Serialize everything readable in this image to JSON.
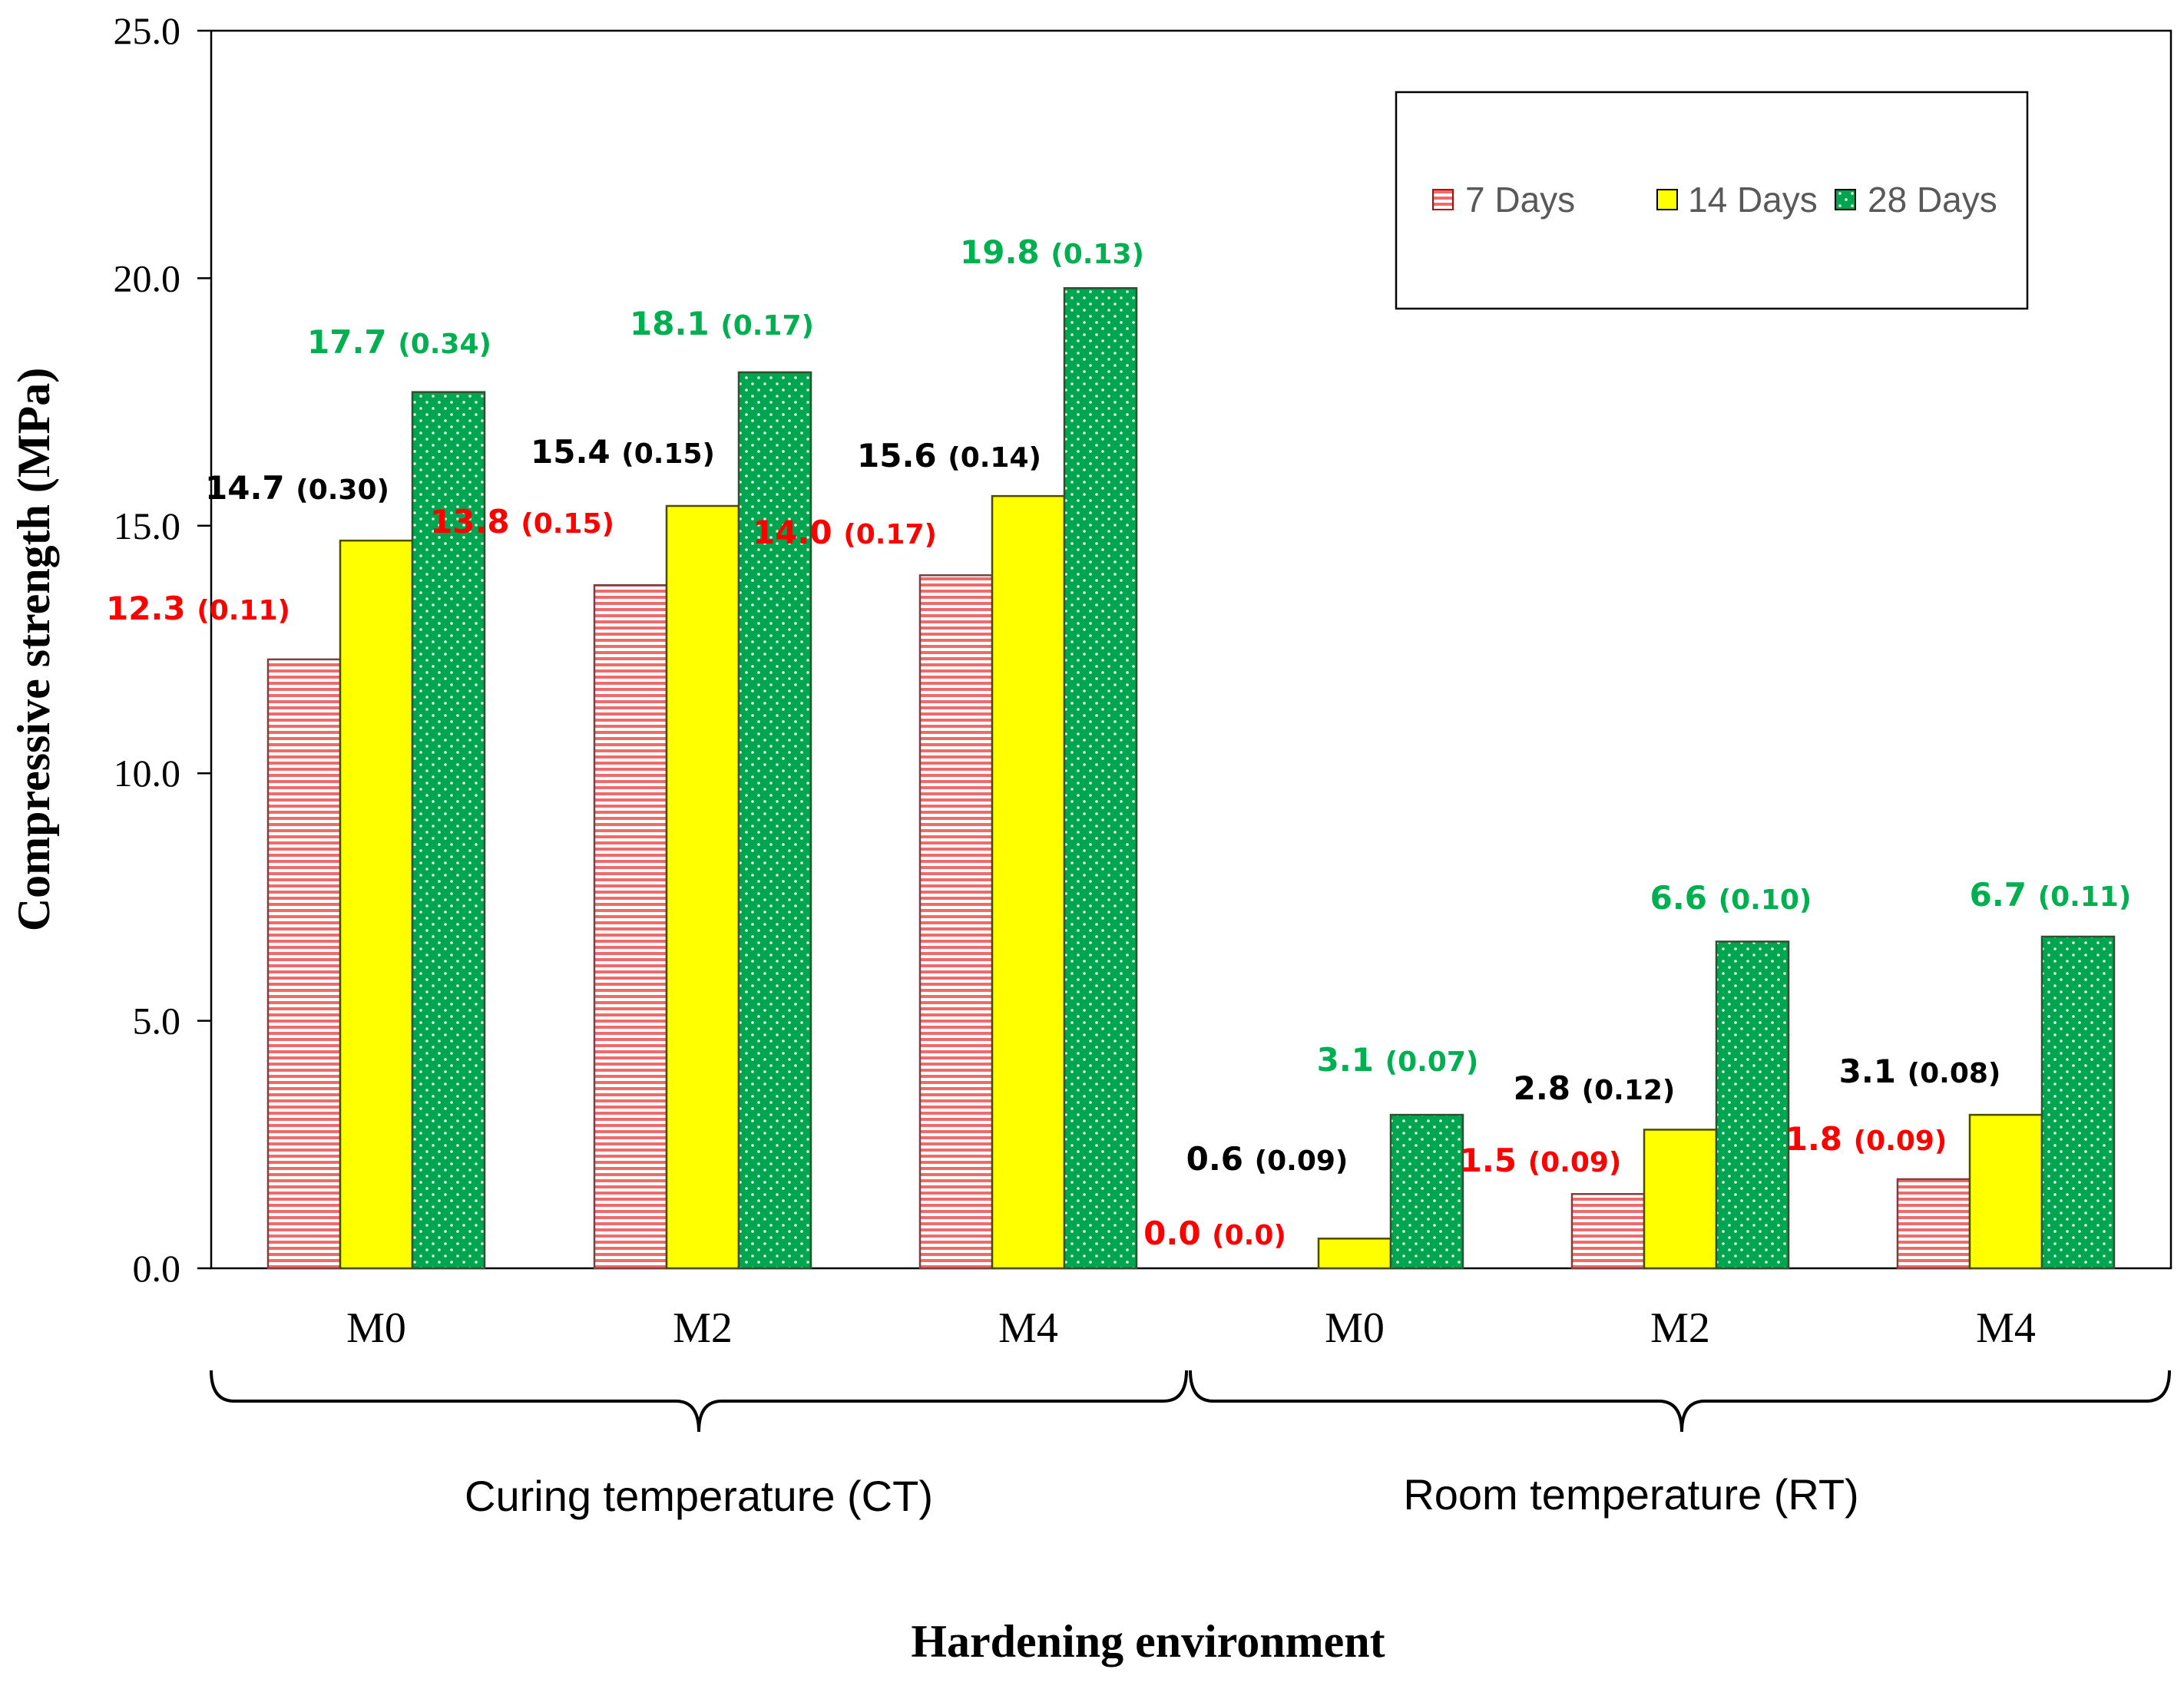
{
  "chart_data": {
    "type": "bar",
    "ylabel": "Compressive strength (MPa)",
    "xlabel": "Hardening environment",
    "ylim": [
      0,
      25
    ],
    "yticks": [
      "0.0",
      "5.0",
      "10.0",
      "15.0",
      "20.0",
      "25.0"
    ],
    "categories": [
      "M0",
      "M2",
      "M4",
      "M0",
      "M2",
      "M4"
    ],
    "groups": [
      {
        "name": "Curing temperature (CT)",
        "category_indices": [
          0,
          1,
          2
        ]
      },
      {
        "name": "Room temperature (RT)",
        "category_indices": [
          3,
          4,
          5
        ]
      }
    ],
    "series": [
      {
        "name": "7 Days",
        "color": "#ff0000",
        "fill": "#f4a3a3",
        "pattern": "horizontal-lines",
        "values": [
          12.3,
          13.8,
          14.0,
          0.0,
          1.5,
          1.8
        ],
        "labels": [
          [
            "12.3",
            "(0.11)"
          ],
          [
            "13.8",
            "(0.15)"
          ],
          [
            "14.0",
            "(0.17)"
          ],
          [
            "0.0",
            "(0.0)"
          ],
          [
            "1.5",
            "(0.09)"
          ],
          [
            "1.8",
            "(0.09)"
          ]
        ]
      },
      {
        "name": "14 Days",
        "color": "#000000",
        "fill": "#ffff00",
        "pattern": "solid",
        "values": [
          14.7,
          15.4,
          15.6,
          0.6,
          2.8,
          3.1
        ],
        "labels": [
          [
            "14.7",
            "(0.30)"
          ],
          [
            "15.4",
            "(0.15)"
          ],
          [
            "15.6",
            "(0.14)"
          ],
          [
            "0.6",
            "(0.09)"
          ],
          [
            "2.8",
            "(0.12)"
          ],
          [
            "3.1",
            "(0.08)"
          ]
        ]
      },
      {
        "name": "28 Days",
        "color": "#00b050",
        "fill": "#00a550",
        "pattern": "dots",
        "values": [
          17.7,
          18.1,
          19.8,
          3.1,
          6.6,
          6.7
        ],
        "labels": [
          [
            "17.7",
            "(0.34)"
          ],
          [
            "18.1",
            "(0.17)"
          ],
          [
            "19.8",
            "(0.13)"
          ],
          [
            "3.1",
            "(0.07)"
          ],
          [
            "6.6",
            "(0.10)"
          ],
          [
            "6.7",
            "(0.11)"
          ]
        ]
      }
    ],
    "legend": {
      "position": "top-right",
      "entries": [
        "7 Days",
        "14 Days",
        "28 Days"
      ]
    }
  }
}
